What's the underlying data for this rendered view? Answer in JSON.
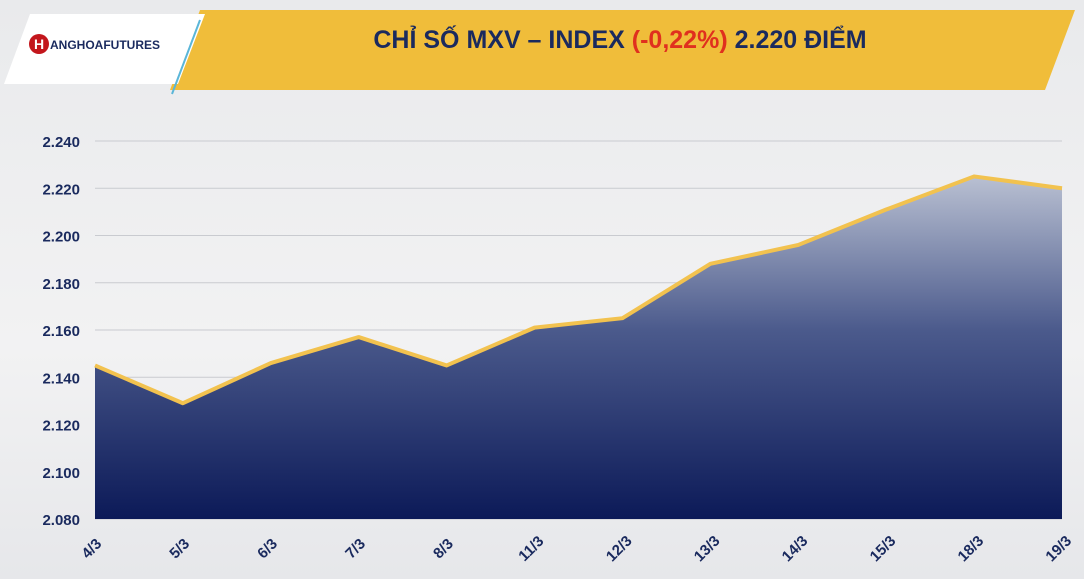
{
  "logo": {
    "icon": "H",
    "text": "ANGHOAFUTURES"
  },
  "chart_data": {
    "type": "area",
    "title_parts": [
      "CHỈ SỐ MXV – INDEX",
      "(-0,22%)",
      "2.220 ĐIỂM"
    ],
    "categories": [
      "4/3",
      "5/3",
      "6/3",
      "7/3",
      "8/3",
      "11/3",
      "12/3",
      "13/3",
      "14/3",
      "15/3",
      "18/3",
      "19/3"
    ],
    "values": [
      2145,
      2129,
      2146,
      2157,
      2145,
      2161,
      2165,
      2188,
      2196,
      2211,
      2225,
      2220
    ],
    "color": "#f2c24f",
    "ylim": [
      2080,
      2240
    ],
    "yticks": [
      {
        "value": 2080,
        "label": "2.080"
      },
      {
        "value": 2100,
        "label": "2.100"
      },
      {
        "value": 2120,
        "label": "2.120"
      },
      {
        "value": 2140,
        "label": "2.140"
      },
      {
        "value": 2160,
        "label": "2.160"
      },
      {
        "value": 2180,
        "label": "2.180"
      },
      {
        "value": 2200,
        "label": "2.200"
      },
      {
        "value": 2220,
        "label": "2.220"
      },
      {
        "value": 2240,
        "label": "2.240"
      }
    ],
    "grid": true
  }
}
